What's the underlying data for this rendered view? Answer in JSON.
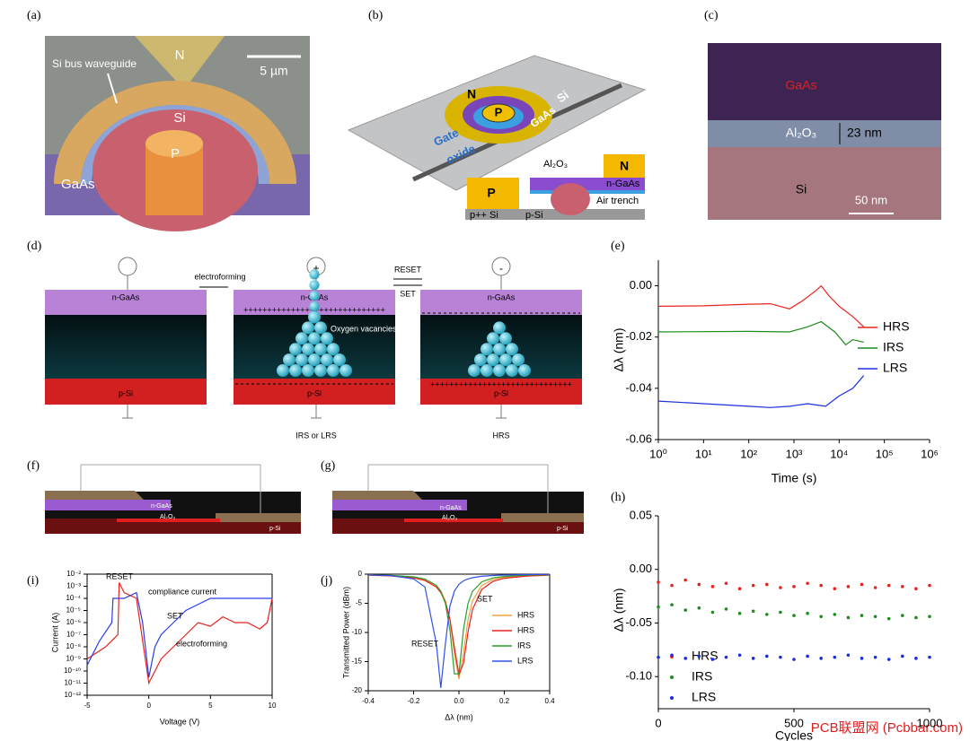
{
  "panel_labels": [
    "(a)",
    "(b)",
    "(c)",
    "(d)",
    "(e)",
    "(f)",
    "(g)",
    "(h)",
    "(i)",
    "(j)"
  ],
  "a": {
    "n": "N",
    "waveguide": "Si bus waveguide",
    "scale": "5 µm",
    "si": "Si",
    "p": "P",
    "gaas": "GaAs"
  },
  "b": {
    "n": "N",
    "p": "P",
    "gaas": "GaAs",
    "si": "Si",
    "gate": "Gate",
    "oxide": "oxide",
    "al2o3": "Al₂O₃",
    "inset_p": "P",
    "inset_n": "N",
    "n_gaas": "n-GaAs",
    "air_trench": "Air trench",
    "ppp_si": "p++ Si",
    "p_si": "p-Si"
  },
  "c": {
    "gaas": "GaAs",
    "al2o3": "Al₂O₃",
    "thickness": "23 nm",
    "si": "Si",
    "scale": "50 nm"
  },
  "d": {
    "electroforming": "electroforming",
    "reset": "RESET",
    "set": "SET",
    "n_gaas": [
      "n-GaAs",
      "n-GaAs",
      "n-GaAs"
    ],
    "p_si": [
      "p-Si",
      "p-Si",
      "p-Si"
    ],
    "charges_plus": "++++++++++++++++++++++++++++++",
    "oxygen_vacancies": "Oxygen vacancies",
    "state_2": "IRS or LRS",
    "state_3": "HRS",
    "plus": "+",
    "minus": "-"
  },
  "f": {
    "n_gaas": "n-GaAs",
    "al2o3": "Al₂O₃",
    "p_si": "p-Si"
  },
  "g": {
    "n_gaas": "n-GaAs",
    "al2o3": "Al₂O₃",
    "p_si": "p-Si"
  },
  "watermark": "PCB联盟网 (Pcbbar.com)",
  "chart_data": [
    {
      "type": "line",
      "xlabel": "Time (s)",
      "ylabel": "Δλ (nm)",
      "xscale": "log",
      "xlim": [
        1,
        1000000
      ],
      "ylim": [
        -0.06,
        0.01
      ],
      "xticks": [
        {
          "value": 1,
          "label": "10⁰"
        },
        {
          "value": 10,
          "label": "10¹"
        },
        {
          "value": 100,
          "label": "10²"
        },
        {
          "value": 1000,
          "label": "10³"
        },
        {
          "value": 10000,
          "label": "10⁴"
        },
        {
          "value": 100000,
          "label": "10⁵"
        },
        {
          "value": 1000000,
          "label": "10⁶"
        }
      ],
      "yticks": [
        -0.06,
        -0.04,
        -0.02,
        {
          "value": 0,
          "label": "0.00"
        }
      ],
      "series": [
        {
          "name": "HRS",
          "color": "#e8241e",
          "x": [
            1,
            10,
            100,
            300,
            800,
            1500,
            3000,
            4000,
            6000,
            10000,
            20000,
            35000
          ],
          "values": [
            -0.008,
            -0.0078,
            -0.0072,
            -0.007,
            -0.009,
            -0.006,
            -0.002,
            0.0,
            -0.004,
            -0.008,
            -0.012,
            -0.016
          ]
        },
        {
          "name": "IRS",
          "color": "#1e8c1e",
          "x": [
            1,
            100,
            800,
            2000,
            4000,
            8000,
            14000,
            20000,
            35000
          ],
          "values": [
            -0.018,
            -0.0178,
            -0.018,
            -0.016,
            -0.014,
            -0.018,
            -0.023,
            -0.021,
            -0.022
          ]
        },
        {
          "name": "LRS",
          "color": "#1a2ee0",
          "x": [
            1,
            100,
            300,
            800,
            2000,
            5000,
            10000,
            20000,
            35000
          ],
          "values": [
            -0.045,
            -0.047,
            -0.0475,
            -0.047,
            -0.046,
            -0.047,
            -0.043,
            -0.04,
            -0.035
          ]
        }
      ]
    },
    {
      "type": "scatter",
      "xlabel": "Cycles",
      "ylabel": "Δλ (nm)",
      "xlim": [
        0,
        1000
      ],
      "ylim": [
        -0.13,
        0.05
      ],
      "xticks": [
        0,
        500,
        1000
      ],
      "yticks": [
        {
          "value": -0.1,
          "label": "-0.10"
        },
        -0.05,
        {
          "value": 0,
          "label": "0.00"
        },
        0.05
      ],
      "x": [
        0,
        50,
        100,
        150,
        200,
        250,
        300,
        350,
        400,
        450,
        500,
        550,
        600,
        650,
        700,
        750,
        800,
        850,
        900,
        950,
        1000
      ],
      "series": [
        {
          "name": "HRS",
          "color": "#e8241e",
          "values": [
            -0.012,
            -0.015,
            -0.01,
            -0.014,
            -0.016,
            -0.013,
            -0.018,
            -0.015,
            -0.014,
            -0.017,
            -0.016,
            -0.013,
            -0.015,
            -0.018,
            -0.016,
            -0.014,
            -0.017,
            -0.015,
            -0.016,
            -0.018,
            -0.015
          ]
        },
        {
          "name": "IRS",
          "color": "#1e8c1e",
          "values": [
            -0.035,
            -0.033,
            -0.038,
            -0.036,
            -0.04,
            -0.037,
            -0.041,
            -0.039,
            -0.042,
            -0.04,
            -0.043,
            -0.041,
            -0.044,
            -0.042,
            -0.045,
            -0.043,
            -0.044,
            -0.046,
            -0.043,
            -0.045,
            -0.044
          ]
        },
        {
          "name": "LRS",
          "color": "#1a2ee0",
          "values": [
            -0.082,
            -0.08,
            -0.083,
            -0.081,
            -0.084,
            -0.082,
            -0.08,
            -0.083,
            -0.081,
            -0.082,
            -0.084,
            -0.081,
            -0.083,
            -0.082,
            -0.08,
            -0.083,
            -0.082,
            -0.084,
            -0.081,
            -0.083,
            -0.082
          ]
        }
      ]
    },
    {
      "type": "line",
      "xlabel": "Voltage (V)",
      "ylabel": "Current (A)",
      "yscale": "log",
      "xlim": [
        -5,
        10
      ],
      "ylim": [
        1e-12,
        0.01
      ],
      "xticks": [
        -5,
        0,
        5,
        10
      ],
      "yticks": [
        {
          "value": 1e-12,
          "label": "10⁻¹²"
        },
        {
          "value": 1e-11,
          "label": "10⁻¹¹"
        },
        {
          "value": 1e-10,
          "label": "10⁻¹⁰"
        },
        {
          "value": 1e-09,
          "label": "10⁻⁹"
        },
        {
          "value": 1e-08,
          "label": "10⁻⁸"
        },
        {
          "value": 1e-07,
          "label": "10⁻⁷"
        },
        {
          "value": 1e-06,
          "label": "10⁻⁶"
        },
        {
          "value": 1e-05,
          "label": "10⁻⁵"
        },
        {
          "value": 0.0001,
          "label": "10⁻⁴"
        },
        {
          "value": 0.001,
          "label": "10⁻³"
        },
        {
          "value": 0.01,
          "label": "10⁻²"
        }
      ],
      "annotations": [
        "RESET",
        "compliance current",
        "SET",
        "electroforming"
      ],
      "series": [
        {
          "color": "#e8241e",
          "x": [
            -5,
            -3.5,
            -2.5,
            -2.4,
            -2,
            -1,
            0,
            1,
            2,
            3,
            4,
            5,
            6,
            7,
            8,
            9,
            9.6,
            10
          ],
          "values": [
            1e-09,
            1e-08,
            1e-07,
            0.002,
            0.0003,
            0.0001,
            1e-11,
            1e-09,
            1e-08,
            1e-07,
            1e-06,
            5e-07,
            3e-06,
            1e-06,
            1e-06,
            3e-07,
            1e-06,
            0.0001
          ]
        },
        {
          "color": "#2a3ee8",
          "x": [
            -5,
            -4,
            -3,
            -2.9,
            -2,
            -1,
            -0.5,
            0,
            0.5,
            1,
            2,
            3,
            5,
            7,
            10
          ],
          "values": [
            3e-10,
            3e-08,
            1e-06,
            0.0001,
            0.0001,
            0.0003,
            1e-06,
            3e-11,
            1e-08,
            1e-07,
            1e-06,
            1e-05,
            0.0001,
            0.0001,
            0.0001
          ]
        }
      ]
    },
    {
      "type": "line",
      "xlabel": "Δλ (nm)",
      "ylabel": "Transmitted  Power (dBm)",
      "xlim": [
        -0.4,
        0.4
      ],
      "ylim": [
        -20,
        0
      ],
      "xticks": [
        -0.4,
        -0.2,
        {
          "value": 0,
          "label": "0.0"
        },
        0.2,
        0.4
      ],
      "yticks": [
        -20,
        -15,
        -10,
        -5,
        0
      ],
      "annotations": [
        "SET",
        "RESET"
      ],
      "x": [
        -0.4,
        -0.3,
        -0.2,
        -0.15,
        -0.1,
        -0.08,
        -0.06,
        -0.04,
        -0.02,
        0,
        0.02,
        0.04,
        0.06,
        0.1,
        0.15,
        0.2,
        0.3,
        0.4
      ],
      "series": [
        {
          "name": "HRS",
          "color": "#f0a040",
          "values": [
            -0.14,
            -0.24,
            -0.53,
            -0.93,
            -1.96,
            -2.89,
            -4.57,
            -7.8,
            -13.6,
            -18,
            -13.6,
            -7.8,
            -4.57,
            -1.96,
            -0.93,
            -0.53,
            -0.24,
            -0.14
          ]
        },
        {
          "name": "HRS",
          "color": "#e82020",
          "values": [
            -0.17,
            -0.3,
            -0.64,
            -1.09,
            -2.22,
            -3.17,
            -4.81,
            -7.7,
            -12.6,
            -17.2,
            -15.3,
            -9.9,
            -6.06,
            -2.64,
            -1.24,
            -0.71,
            -0.32,
            -0.18
          ]
        },
        {
          "name": "IRS",
          "color": "#2aa02a",
          "values": [
            -0.11,
            -0.2,
            -0.46,
            -0.83,
            -1.9,
            -2.95,
            -5.03,
            -9.5,
            -17.1,
            -17.1,
            -9.5,
            -5.03,
            -2.95,
            -1.32,
            -0.65,
            -0.38,
            -0.18,
            -0.1
          ]
        },
        {
          "name": "LRS",
          "color": "#3050e8",
          "values": [
            -0.12,
            -0.25,
            -0.81,
            -2.2,
            -11.9,
            -19.5,
            -11.9,
            -5.5,
            -2.9,
            -1.74,
            -1.15,
            -0.81,
            -0.61,
            -0.37,
            -0.23,
            -0.15,
            -0.08,
            -0.05
          ]
        }
      ]
    }
  ]
}
